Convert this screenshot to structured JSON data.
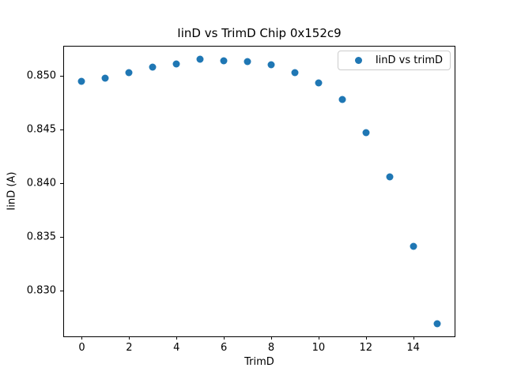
{
  "chart_data": {
    "type": "scatter",
    "title": "IinD vs TrimD Chip 0x152c9",
    "xlabel": "TrimD",
    "ylabel": "IinD (A)",
    "legend_label": "IinD vs trimD",
    "legend_position": "upper right",
    "grid": false,
    "marker_color": "#1f77b4",
    "xlim": [
      -0.75,
      15.75
    ],
    "ylim": [
      0.8257,
      0.85271
    ],
    "x_ticks": [
      0,
      2,
      4,
      6,
      8,
      10,
      12,
      14
    ],
    "x_tick_labels": [
      "0",
      "2",
      "4",
      "6",
      "8",
      "10",
      "12",
      "14"
    ],
    "y_ticks": [
      0.83,
      0.835,
      0.84,
      0.845,
      0.85
    ],
    "y_tick_labels": [
      "0.830",
      "0.835",
      "0.840",
      "0.845",
      "0.850"
    ],
    "series": [
      {
        "name": "IinD vs trimD",
        "x": [
          0,
          1,
          2,
          3,
          4,
          5,
          6,
          7,
          8,
          9,
          10,
          11,
          12,
          13,
          14,
          15
        ],
        "y": [
          0.8495,
          0.8498,
          0.8503,
          0.8508,
          0.8511,
          0.8515,
          0.8514,
          0.8513,
          0.851,
          0.8503,
          0.8493,
          0.8478,
          0.8447,
          0.8406,
          0.8341,
          0.8269
        ]
      }
    ]
  }
}
